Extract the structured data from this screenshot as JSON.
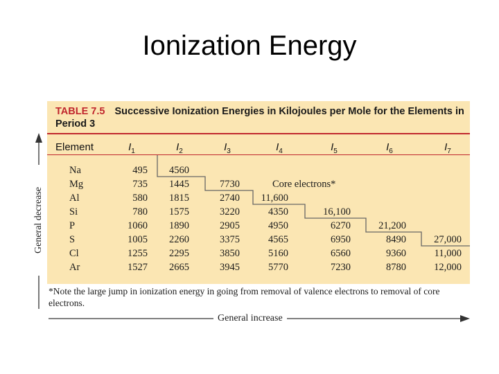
{
  "slide": {
    "title": "Ionization Energy"
  },
  "table": {
    "number": "TABLE 7.5",
    "caption": "Successive Ionization Energies in Kilojoules per Mole for the Elements in Period 3",
    "headers": {
      "element": "Element",
      "i": [
        "1",
        "2",
        "3",
        "4",
        "5",
        "6",
        "7"
      ],
      "i_letter": "I"
    },
    "core_label": "Core electrons*",
    "rows": [
      {
        "symbol": "Na",
        "values": [
          "495",
          "4560",
          "",
          "",
          "",
          "",
          ""
        ]
      },
      {
        "symbol": "Mg",
        "values": [
          "735",
          "1445",
          "7730",
          "",
          "",
          "",
          ""
        ]
      },
      {
        "symbol": "Al",
        "values": [
          "580",
          "1815",
          "2740",
          "11,600",
          "",
          "",
          ""
        ]
      },
      {
        "symbol": "Si",
        "values": [
          "780",
          "1575",
          "3220",
          "4350",
          "16,100",
          "",
          ""
        ]
      },
      {
        "symbol": "P",
        "values": [
          "1060",
          "1890",
          "2905",
          "4950",
          "6270",
          "21,200",
          ""
        ]
      },
      {
        "symbol": "S",
        "values": [
          "1005",
          "2260",
          "3375",
          "4565",
          "6950",
          "8490",
          "27,000"
        ]
      },
      {
        "symbol": "Cl",
        "values": [
          "1255",
          "2295",
          "3850",
          "5160",
          "6560",
          "9360",
          "11,000"
        ]
      },
      {
        "symbol": "Ar",
        "values": [
          "1527",
          "2665",
          "3945",
          "5770",
          "7230",
          "8780",
          "12,000"
        ]
      }
    ],
    "footnote": "*Note the large jump in ionization energy in going from removal of valence electrons to removal of core electrons."
  },
  "axes": {
    "vertical": "General decrease",
    "horizontal": "General increase"
  }
}
